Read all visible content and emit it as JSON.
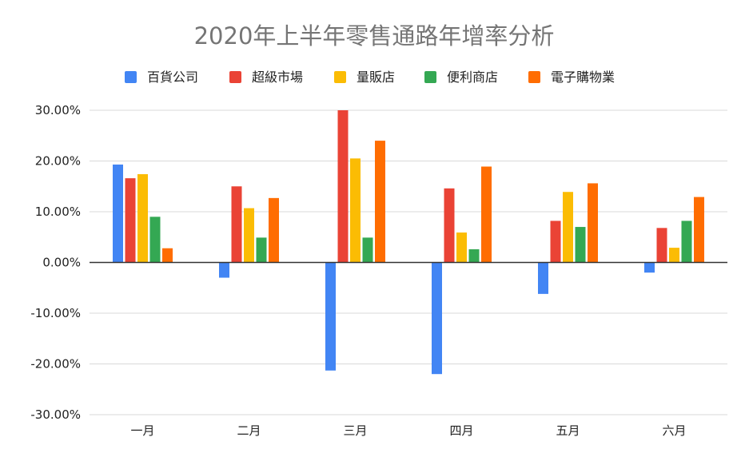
{
  "chart_data": {
    "type": "bar",
    "title": "2020年上半年零售通路年增率分析",
    "categories": [
      "一月",
      "二月",
      "三月",
      "四月",
      "五月",
      "六月"
    ],
    "series": [
      {
        "name": "百貨公司",
        "color": "#4285f4",
        "values": [
          19.3,
          -3.0,
          -21.3,
          -22.0,
          -6.2,
          -2.0
        ]
      },
      {
        "name": "超級市場",
        "color": "#ea4335",
        "values": [
          16.6,
          15.0,
          30.0,
          14.6,
          8.2,
          6.8
        ]
      },
      {
        "name": "量販店",
        "color": "#fbbc04",
        "values": [
          17.4,
          10.7,
          20.5,
          5.9,
          13.9,
          2.9
        ]
      },
      {
        "name": "便利商店",
        "color": "#34a853",
        "values": [
          9.0,
          4.9,
          4.9,
          2.6,
          7.0,
          8.2
        ]
      },
      {
        "name": "電子購物業",
        "color": "#ff6d01",
        "values": [
          2.8,
          12.7,
          24.0,
          18.9,
          15.6,
          12.9
        ]
      }
    ],
    "ylim": [
      -30,
      30
    ],
    "yticks": [
      "30.00%",
      "20.00%",
      "10.00%",
      "0.00%",
      "-10.00%",
      "-20.00%",
      "-30.00%"
    ],
    "ytick_values": [
      30,
      20,
      10,
      0,
      -10,
      -20,
      -30
    ],
    "grid": true,
    "legend_position": "top"
  }
}
